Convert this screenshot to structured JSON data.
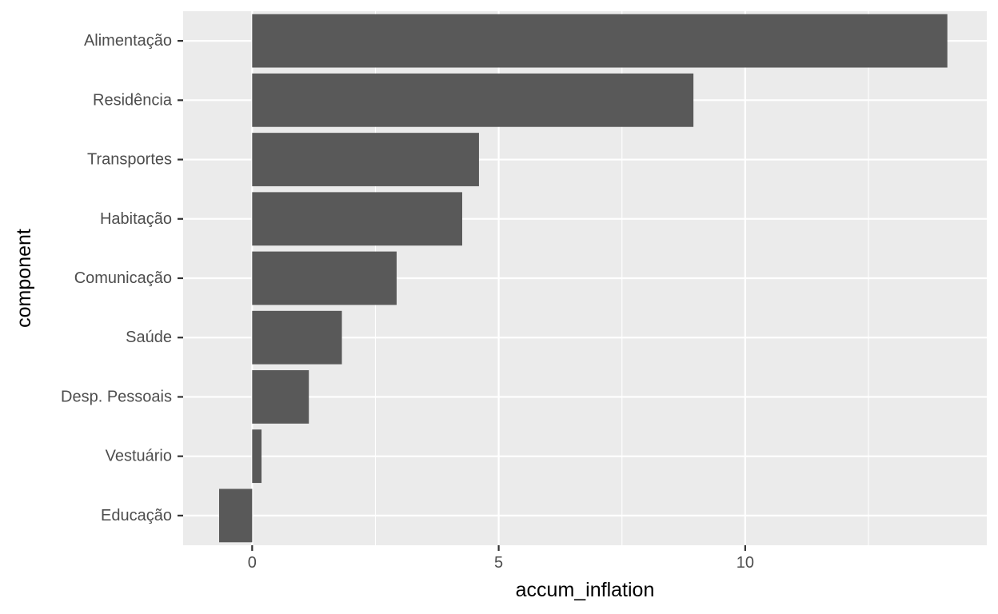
{
  "chart_data": {
    "type": "bar",
    "orientation": "horizontal",
    "xlabel": "accum_inflation",
    "ylabel": "component",
    "categories": [
      "Alimentação",
      "Residência",
      "Transportes",
      "Habitação",
      "Comunicação",
      "Saúde",
      "Desp. Pessoais",
      "Vestuário",
      "Educação"
    ],
    "values": [
      14.1,
      8.95,
      4.6,
      4.26,
      2.93,
      1.82,
      1.15,
      0.19,
      -0.67
    ],
    "xlim": [
      -1.4,
      14.9
    ],
    "xticks": [
      0,
      5,
      10
    ],
    "xtick_labels": [
      "0",
      "5",
      "10"
    ],
    "grid": true,
    "legend": "none",
    "colors": {
      "bar": "#595959",
      "panel": "#ebebeb",
      "grid": "#ffffff",
      "tick_text": "#4d4d4d",
      "title_text": "#000000"
    }
  }
}
